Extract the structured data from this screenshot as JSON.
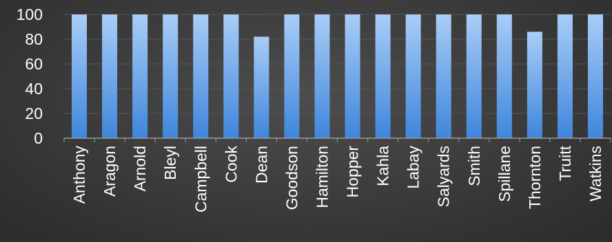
{
  "chart_data": {
    "type": "bar",
    "title": "",
    "xlabel": "",
    "ylabel": "",
    "categories": [
      "Anthony",
      "Aragon",
      "Arnold",
      "Bleyl",
      "Campbell",
      "Cook",
      "Dean",
      "Goodson",
      "Hamilton",
      "Hopper",
      "Kahla",
      "Labay",
      "Salyards",
      "Smith",
      "Spillane",
      "Thornton",
      "Truitt",
      "Watkins"
    ],
    "values": [
      100,
      100,
      100,
      100,
      100,
      100,
      82,
      100,
      100,
      100,
      100,
      100,
      100,
      100,
      100,
      86,
      100,
      100
    ],
    "ylim": [
      0,
      100
    ],
    "yticks": [
      0,
      20,
      40,
      60,
      80,
      100
    ],
    "grid": true,
    "legend": "none",
    "colors": {
      "bar_top": "#a9cdf7",
      "bar_bottom": "#3f86dc",
      "text": "#ffffff",
      "axis": "#9a9a9a",
      "grid": "#555555"
    }
  }
}
